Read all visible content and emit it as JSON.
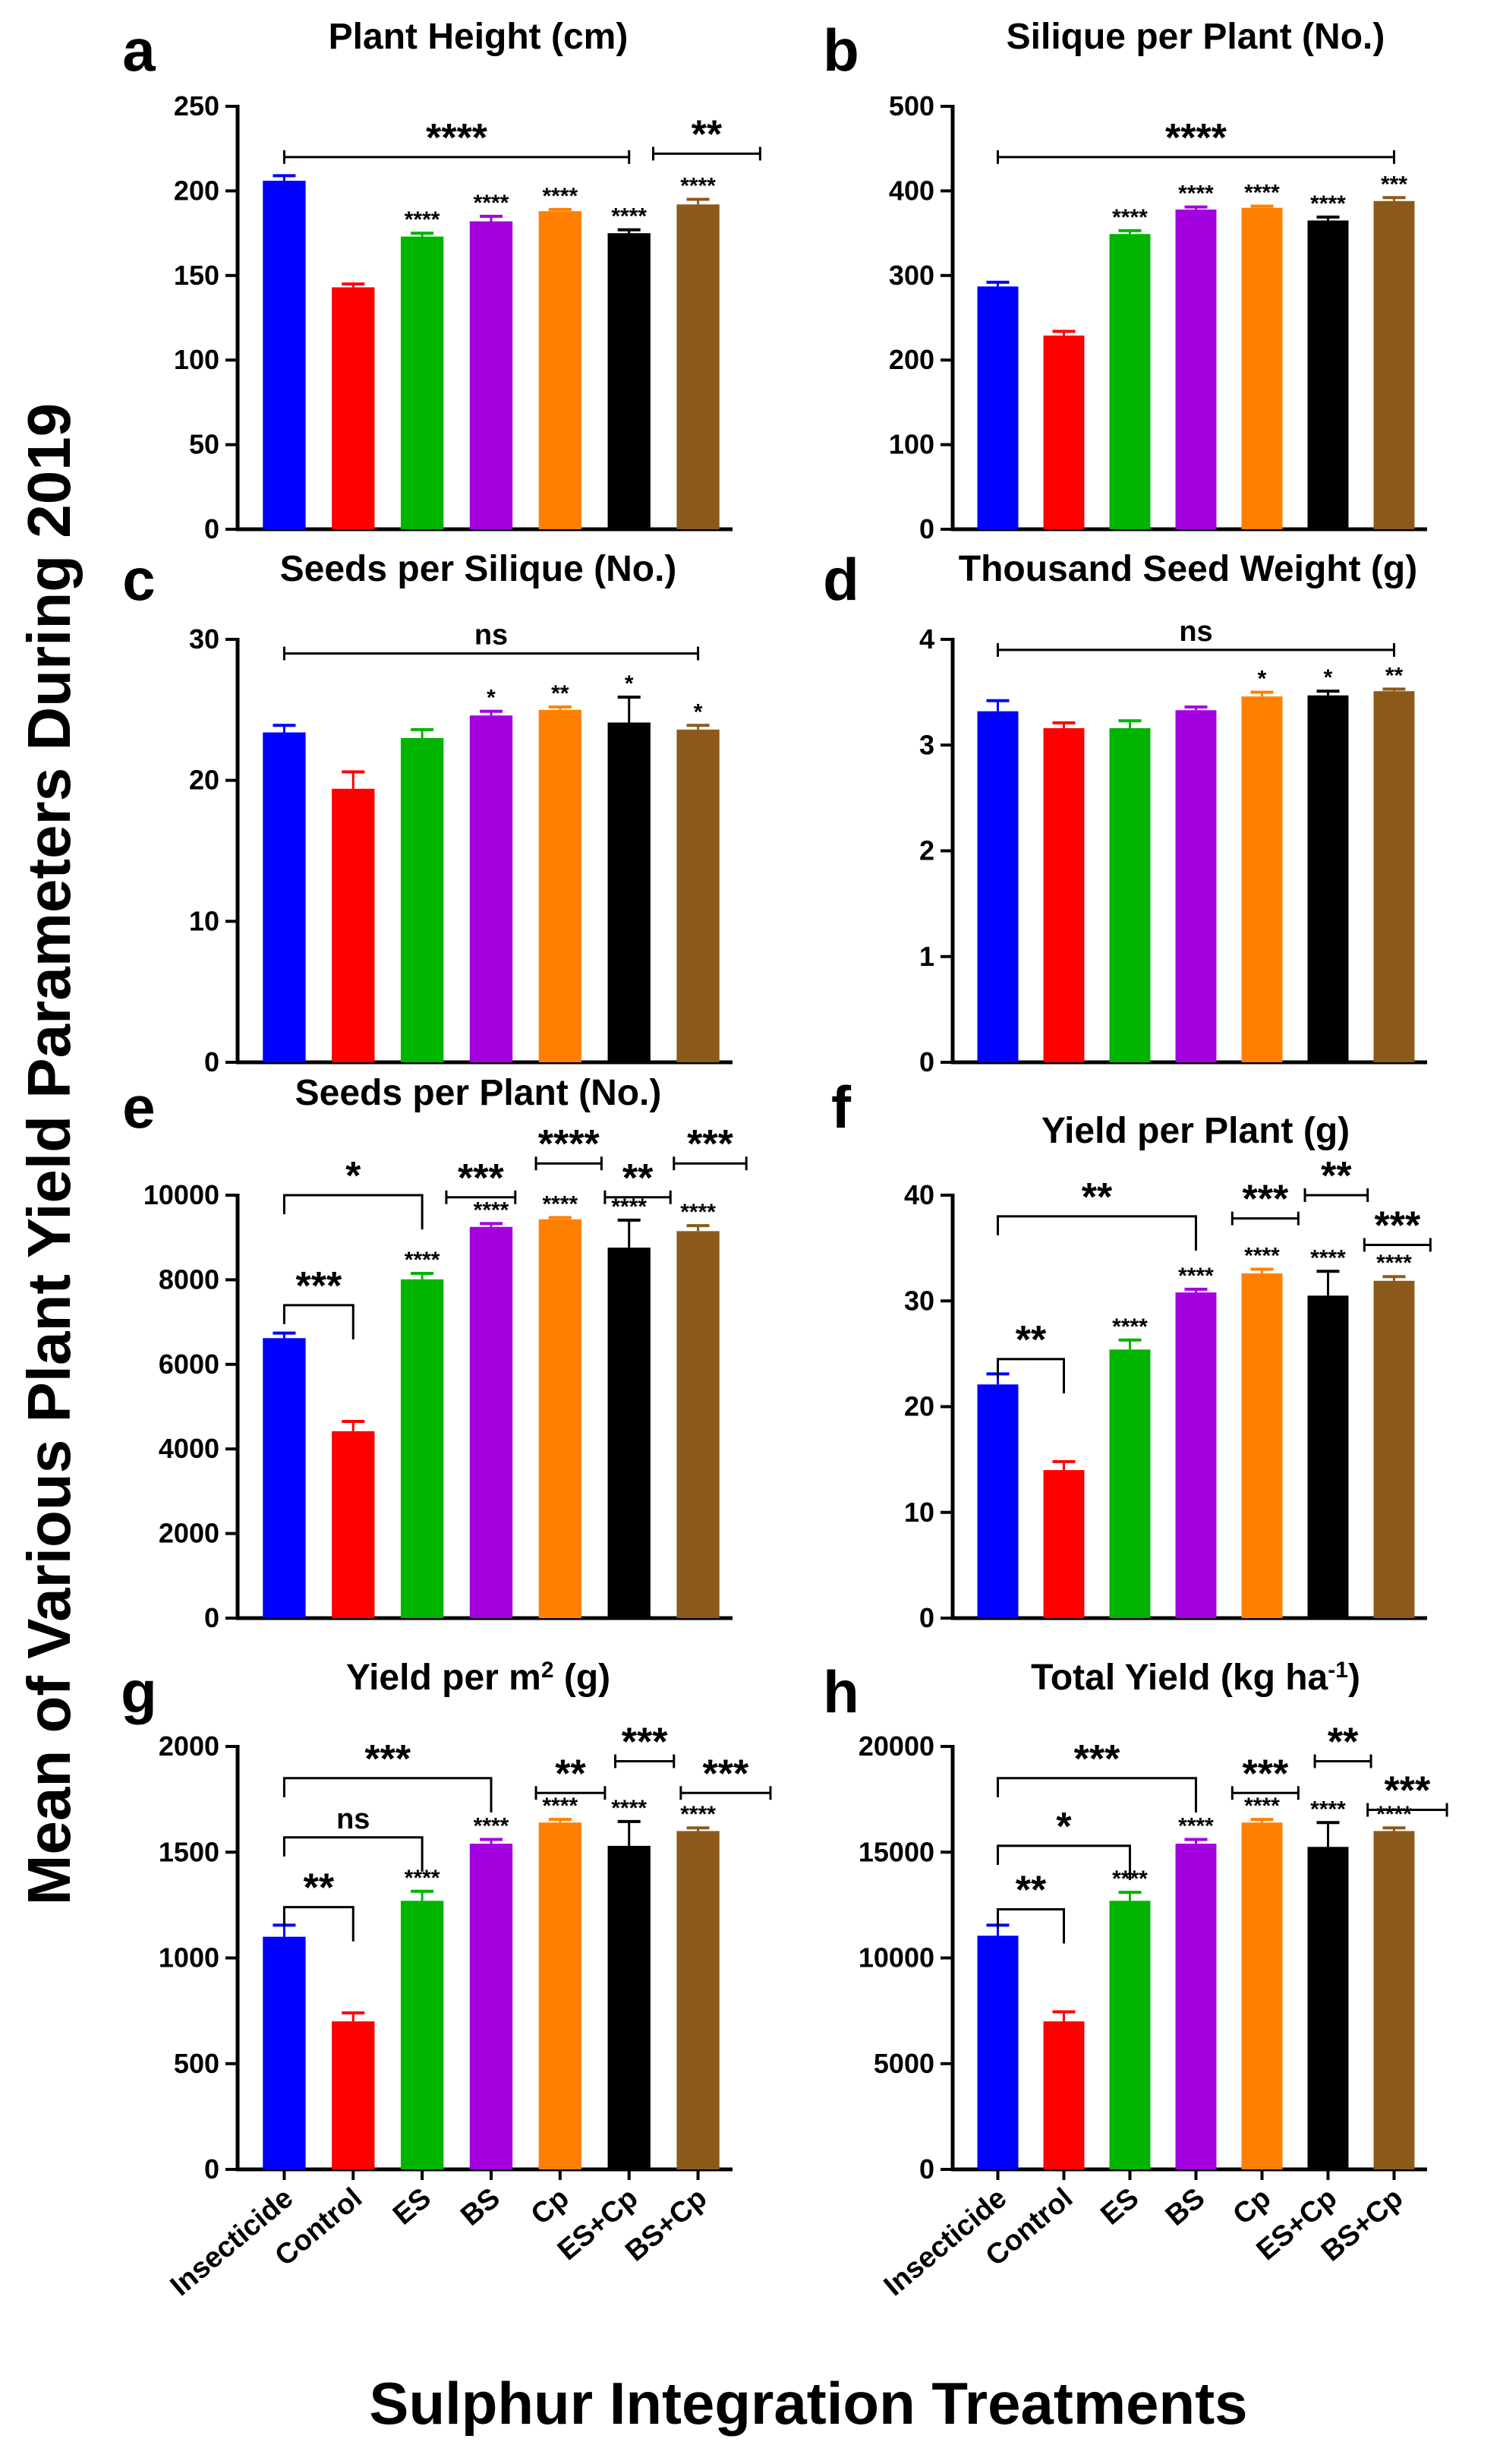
{
  "figure": {
    "y_axis_title": "Mean of Various Plant Yield Parameters During 2019",
    "x_axis_title": "Sulphur Integration Treatments"
  },
  "colors": [
    "#0000ff",
    "#ff0000",
    "#00b400",
    "#a300e0",
    "#ff8000",
    "#000000",
    "#8b5a1b"
  ],
  "chart_data": [
    {
      "type": "bar",
      "letter": "a",
      "title": "Plant Height (cm)",
      "categories": [
        "Insecticide",
        "Control",
        "ES",
        "BS",
        "Cp",
        "ES+Cp",
        "BS+Cp"
      ],
      "values": [
        206,
        143,
        173,
        182,
        188,
        175,
        192
      ],
      "errors": [
        3,
        2,
        2,
        3,
        1,
        2,
        3
      ],
      "ylim": [
        0,
        250
      ],
      "yticks": [
        0,
        50,
        100,
        150,
        200,
        250
      ],
      "bar_labels": [
        "",
        "",
        "****",
        "****",
        "****",
        "****",
        "****"
      ],
      "brackets": [
        {
          "from": 0,
          "to": 5,
          "label": "****",
          "style": "flat",
          "level": 220
        },
        {
          "from": 6,
          "to": 6.9,
          "start": 5.35,
          "label": "**",
          "style": "flat",
          "level": 222
        }
      ]
    },
    {
      "type": "bar",
      "letter": "b",
      "title": "Silique per Plant (No.)",
      "categories": [
        "Insecticide",
        "Control",
        "ES",
        "BS",
        "Cp",
        "ES+Cp",
        "BS+Cp"
      ],
      "values": [
        287,
        229,
        349,
        378,
        380,
        365,
        388
      ],
      "errors": [
        5,
        5,
        4,
        3,
        2,
        4,
        4
      ],
      "ylim": [
        0,
        500
      ],
      "yticks": [
        0,
        100,
        200,
        300,
        400,
        500
      ],
      "bar_labels": [
        "",
        "",
        "****",
        "****",
        "****",
        "****",
        "***"
      ],
      "brackets": [
        {
          "from": 0,
          "to": 6,
          "label": "****",
          "style": "flat",
          "level": 440
        }
      ]
    },
    {
      "type": "bar",
      "letter": "c",
      "title": "Seeds per Silique (No.)",
      "categories": [
        "Insecticide",
        "Control",
        "ES",
        "BS",
        "Cp",
        "ES+Cp",
        "BS+Cp"
      ],
      "values": [
        23.4,
        19.4,
        23.0,
        24.6,
        25.0,
        24.1,
        23.6
      ],
      "errors": [
        0.5,
        1.2,
        0.6,
        0.3,
        0.2,
        1.8,
        0.3
      ],
      "ylim": [
        0,
        30
      ],
      "yticks": [
        0,
        10,
        20,
        30
      ],
      "bar_labels": [
        "",
        "",
        "",
        "*",
        "**",
        "*",
        "*"
      ],
      "brackets": [
        {
          "from": 0,
          "to": 6,
          "label": "ns",
          "style": "flat",
          "level": 29.0
        }
      ]
    },
    {
      "type": "bar",
      "letter": "d",
      "title": "Thousand Seed Weight (g)",
      "categories": [
        "Insecticide",
        "Control",
        "ES",
        "BS",
        "Cp",
        "ES+Cp",
        "BS+Cp"
      ],
      "values": [
        3.32,
        3.16,
        3.16,
        3.33,
        3.46,
        3.47,
        3.51
      ],
      "errors": [
        0.1,
        0.05,
        0.07,
        0.03,
        0.04,
        0.04,
        0.02
      ],
      "ylim": [
        0,
        4
      ],
      "yticks": [
        0,
        1,
        2,
        3,
        4
      ],
      "bar_labels": [
        "",
        "",
        "",
        "",
        "*",
        "*",
        "**"
      ],
      "brackets": [
        {
          "from": 0,
          "to": 6,
          "label": "ns",
          "style": "flat",
          "level": 3.9
        }
      ]
    },
    {
      "type": "bar",
      "letter": "e",
      "title": "Seeds per Plant (No.)",
      "categories": [
        "Insecticide",
        "Control",
        "ES",
        "BS",
        "Cp",
        "ES+Cp",
        "BS+Cp"
      ],
      "values": [
        6620,
        4420,
        8010,
        9250,
        9430,
        8760,
        9150
      ],
      "errors": [
        120,
        230,
        140,
        80,
        40,
        650,
        130
      ],
      "ylim": [
        0,
        10000
      ],
      "yticks": [
        0,
        2000,
        4000,
        6000,
        8000,
        10000
      ],
      "bar_labels": [
        "",
        "",
        "****",
        "****",
        "****",
        "****",
        "****"
      ],
      "brackets": [
        {
          "from": 0,
          "to": 2,
          "label": "*",
          "style": "box",
          "level": 10000
        },
        {
          "from": 0,
          "to": 1,
          "label": "***",
          "style": "box",
          "level": 7400
        },
        {
          "from": 2.35,
          "to": 3.35,
          "label": "***",
          "style": "flat",
          "level": 9950
        },
        {
          "from": 3.65,
          "to": 4.6,
          "label": "****",
          "style": "flat",
          "level": 10750
        },
        {
          "from": 4.65,
          "to": 5.6,
          "label": "**",
          "style": "flat",
          "level": 9950
        },
        {
          "from": 5.65,
          "to": 6.7,
          "label": "***",
          "style": "flat",
          "level": 10750
        }
      ]
    },
    {
      "type": "bar",
      "letter": "f",
      "title": "Yield per Plant (g)",
      "categories": [
        "Insecticide",
        "Control",
        "ES",
        "BS",
        "Cp",
        "ES+Cp",
        "BS+Cp"
      ],
      "values": [
        22.1,
        14.0,
        25.4,
        30.8,
        32.6,
        30.5,
        31.9
      ],
      "errors": [
        1.0,
        0.8,
        0.9,
        0.3,
        0.4,
        2.3,
        0.4
      ],
      "ylim": [
        0,
        40
      ],
      "yticks": [
        0,
        10,
        20,
        30,
        40
      ],
      "bar_labels": [
        "",
        "",
        "****",
        "****",
        "****",
        "****",
        "****"
      ],
      "brackets": [
        {
          "from": 0,
          "to": 3,
          "label": "**",
          "style": "box",
          "level": 38.0
        },
        {
          "from": 0,
          "to": 1,
          "label": "**",
          "style": "box",
          "level": 24.5
        },
        {
          "from": 3.55,
          "to": 4.55,
          "label": "***",
          "style": "flat",
          "level": 37.8
        },
        {
          "from": 4.65,
          "to": 5.6,
          "label": "**",
          "style": "flat",
          "level": 40.0
        },
        {
          "from": 5.55,
          "to": 6.55,
          "label": "***",
          "style": "flat",
          "level": 35.3
        }
      ]
    },
    {
      "type": "bar",
      "letter": "g",
      "title": "Yield per m",
      "title_sup": "2",
      "title_suffix": " (g)",
      "categories": [
        "Insecticide",
        "Control",
        "ES",
        "BS",
        "Cp",
        "ES+Cp",
        "BS+Cp"
      ],
      "values": [
        1100,
        700,
        1270,
        1540,
        1640,
        1530,
        1600
      ],
      "errors": [
        55,
        40,
        45,
        20,
        15,
        115,
        15
      ],
      "ylim": [
        0,
        2000
      ],
      "yticks": [
        0,
        500,
        1000,
        1500,
        2000
      ],
      "bar_labels": [
        "",
        "",
        "****",
        "****",
        "****",
        "****",
        "****"
      ],
      "brackets": [
        {
          "from": 0,
          "to": 3,
          "label": "***",
          "style": "box",
          "level": 1850
        },
        {
          "from": 0,
          "to": 2,
          "label": "ns",
          "style": "box",
          "level": 1570
        },
        {
          "from": 0,
          "to": 1,
          "label": "**",
          "style": "box",
          "level": 1240
        },
        {
          "from": 3.65,
          "to": 4.65,
          "label": "**",
          "style": "flat",
          "level": 1780
        },
        {
          "from": 4.8,
          "to": 5.65,
          "label": "***",
          "style": "flat",
          "level": 1930
        },
        {
          "from": 5.75,
          "to": 7.05,
          "label": "***",
          "style": "flat",
          "level": 1780
        }
      ]
    },
    {
      "type": "bar",
      "letter": "h",
      "title": "Total Yield (kg ha",
      "title_sup": "-1",
      "title_suffix": ")",
      "categories": [
        "Insecticide",
        "Control",
        "ES",
        "BS",
        "Cp",
        "ES+Cp",
        "BS+Cp"
      ],
      "values": [
        11050,
        7000,
        12700,
        15400,
        16400,
        15250,
        16000
      ],
      "errors": [
        500,
        450,
        400,
        200,
        150,
        1150,
        150
      ],
      "ylim": [
        0,
        20000
      ],
      "yticks": [
        0,
        5000,
        10000,
        15000,
        20000
      ],
      "bar_labels": [
        "",
        "",
        "****",
        "****",
        "****",
        "****",
        "****"
      ],
      "brackets": [
        {
          "from": 0,
          "to": 3,
          "label": "***",
          "style": "box",
          "level": 18500
        },
        {
          "from": 0,
          "to": 2,
          "label": "*",
          "style": "box",
          "level": 15300
        },
        {
          "from": 0,
          "to": 1,
          "label": "**",
          "style": "box",
          "level": 12300
        },
        {
          "from": 3.55,
          "to": 4.55,
          "label": "***",
          "style": "flat",
          "level": 17800
        },
        {
          "from": 4.8,
          "to": 5.65,
          "label": "**",
          "style": "flat",
          "level": 19300
        },
        {
          "from": 5.6,
          "to": 6.8,
          "label": "***",
          "style": "flat",
          "level": 17000
        }
      ]
    }
  ]
}
